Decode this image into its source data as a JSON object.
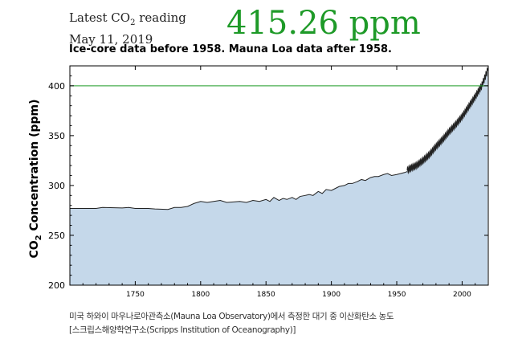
{
  "header": {
    "reading_prefix": "Latest CO",
    "reading_sub": "2",
    "reading_suffix": " reading",
    "reading_date": "May 11, 2019",
    "latest_value": "415.26 ppm"
  },
  "caption": {
    "line1": "미국 하와이 마우나로아관측소(Mauna Loa Observatory)에서 측정한 대기 중 이산화탄소 농도",
    "line2": "[스크립스해양학연구소(Scripps Institution of Oceanography)]"
  },
  "colors": {
    "fill": "#c5d8ea",
    "curve": "#222222",
    "reference_line": "#1e9a28",
    "headline": "#1e9a28"
  },
  "chart_data": {
    "type": "area",
    "title": "Ice-core data before 1958. Mauna Loa data after 1958.",
    "xlabel": "",
    "ylabel": "CO2 Concentration (ppm)",
    "xlim": [
      1700,
      2020
    ],
    "ylim": [
      200,
      420
    ],
    "x_ticks": [
      1750,
      1800,
      1850,
      1900,
      1950,
      2000
    ],
    "y_ticks": [
      200,
      250,
      300,
      350,
      400
    ],
    "reference_line": {
      "y": 400
    },
    "grid": false,
    "ice_core": {
      "x": [
        1700,
        1720,
        1725,
        1740,
        1745,
        1750,
        1760,
        1765,
        1775,
        1780,
        1785,
        1790,
        1795,
        1800,
        1805,
        1810,
        1815,
        1820,
        1830,
        1835,
        1840,
        1845,
        1850,
        1853,
        1856,
        1860,
        1863,
        1866,
        1870,
        1873,
        1876,
        1880,
        1883,
        1886,
        1890,
        1893,
        1896,
        1900,
        1903,
        1906,
        1910,
        1913,
        1916,
        1920,
        1923,
        1926,
        1930,
        1933,
        1936,
        1940,
        1943,
        1946,
        1950,
        1953,
        1956,
        1958
      ],
      "y": [
        277,
        277,
        278,
        277.5,
        278,
        277,
        277,
        276.5,
        276,
        278,
        278,
        279,
        282,
        284,
        283,
        284,
        285,
        283,
        284,
        283,
        285,
        284,
        286,
        284,
        288,
        285,
        287,
        286,
        288,
        286,
        289,
        290,
        291,
        290,
        294,
        292,
        296,
        295,
        297,
        299,
        300,
        302,
        302,
        304,
        306,
        305,
        308,
        309,
        309,
        311,
        312,
        310,
        311,
        312,
        313,
        314
      ]
    },
    "mauna_loa": {
      "x": [
        1958,
        1960,
        1965,
        1970,
        1975,
        1980,
        1985,
        1990,
        1995,
        2000,
        2005,
        2010,
        2015,
        2019.4
      ],
      "y": [
        315,
        317,
        320,
        325,
        331,
        339,
        346,
        354,
        361,
        369,
        379,
        389,
        400,
        415.26
      ],
      "seasonal_amplitude": 3
    }
  }
}
